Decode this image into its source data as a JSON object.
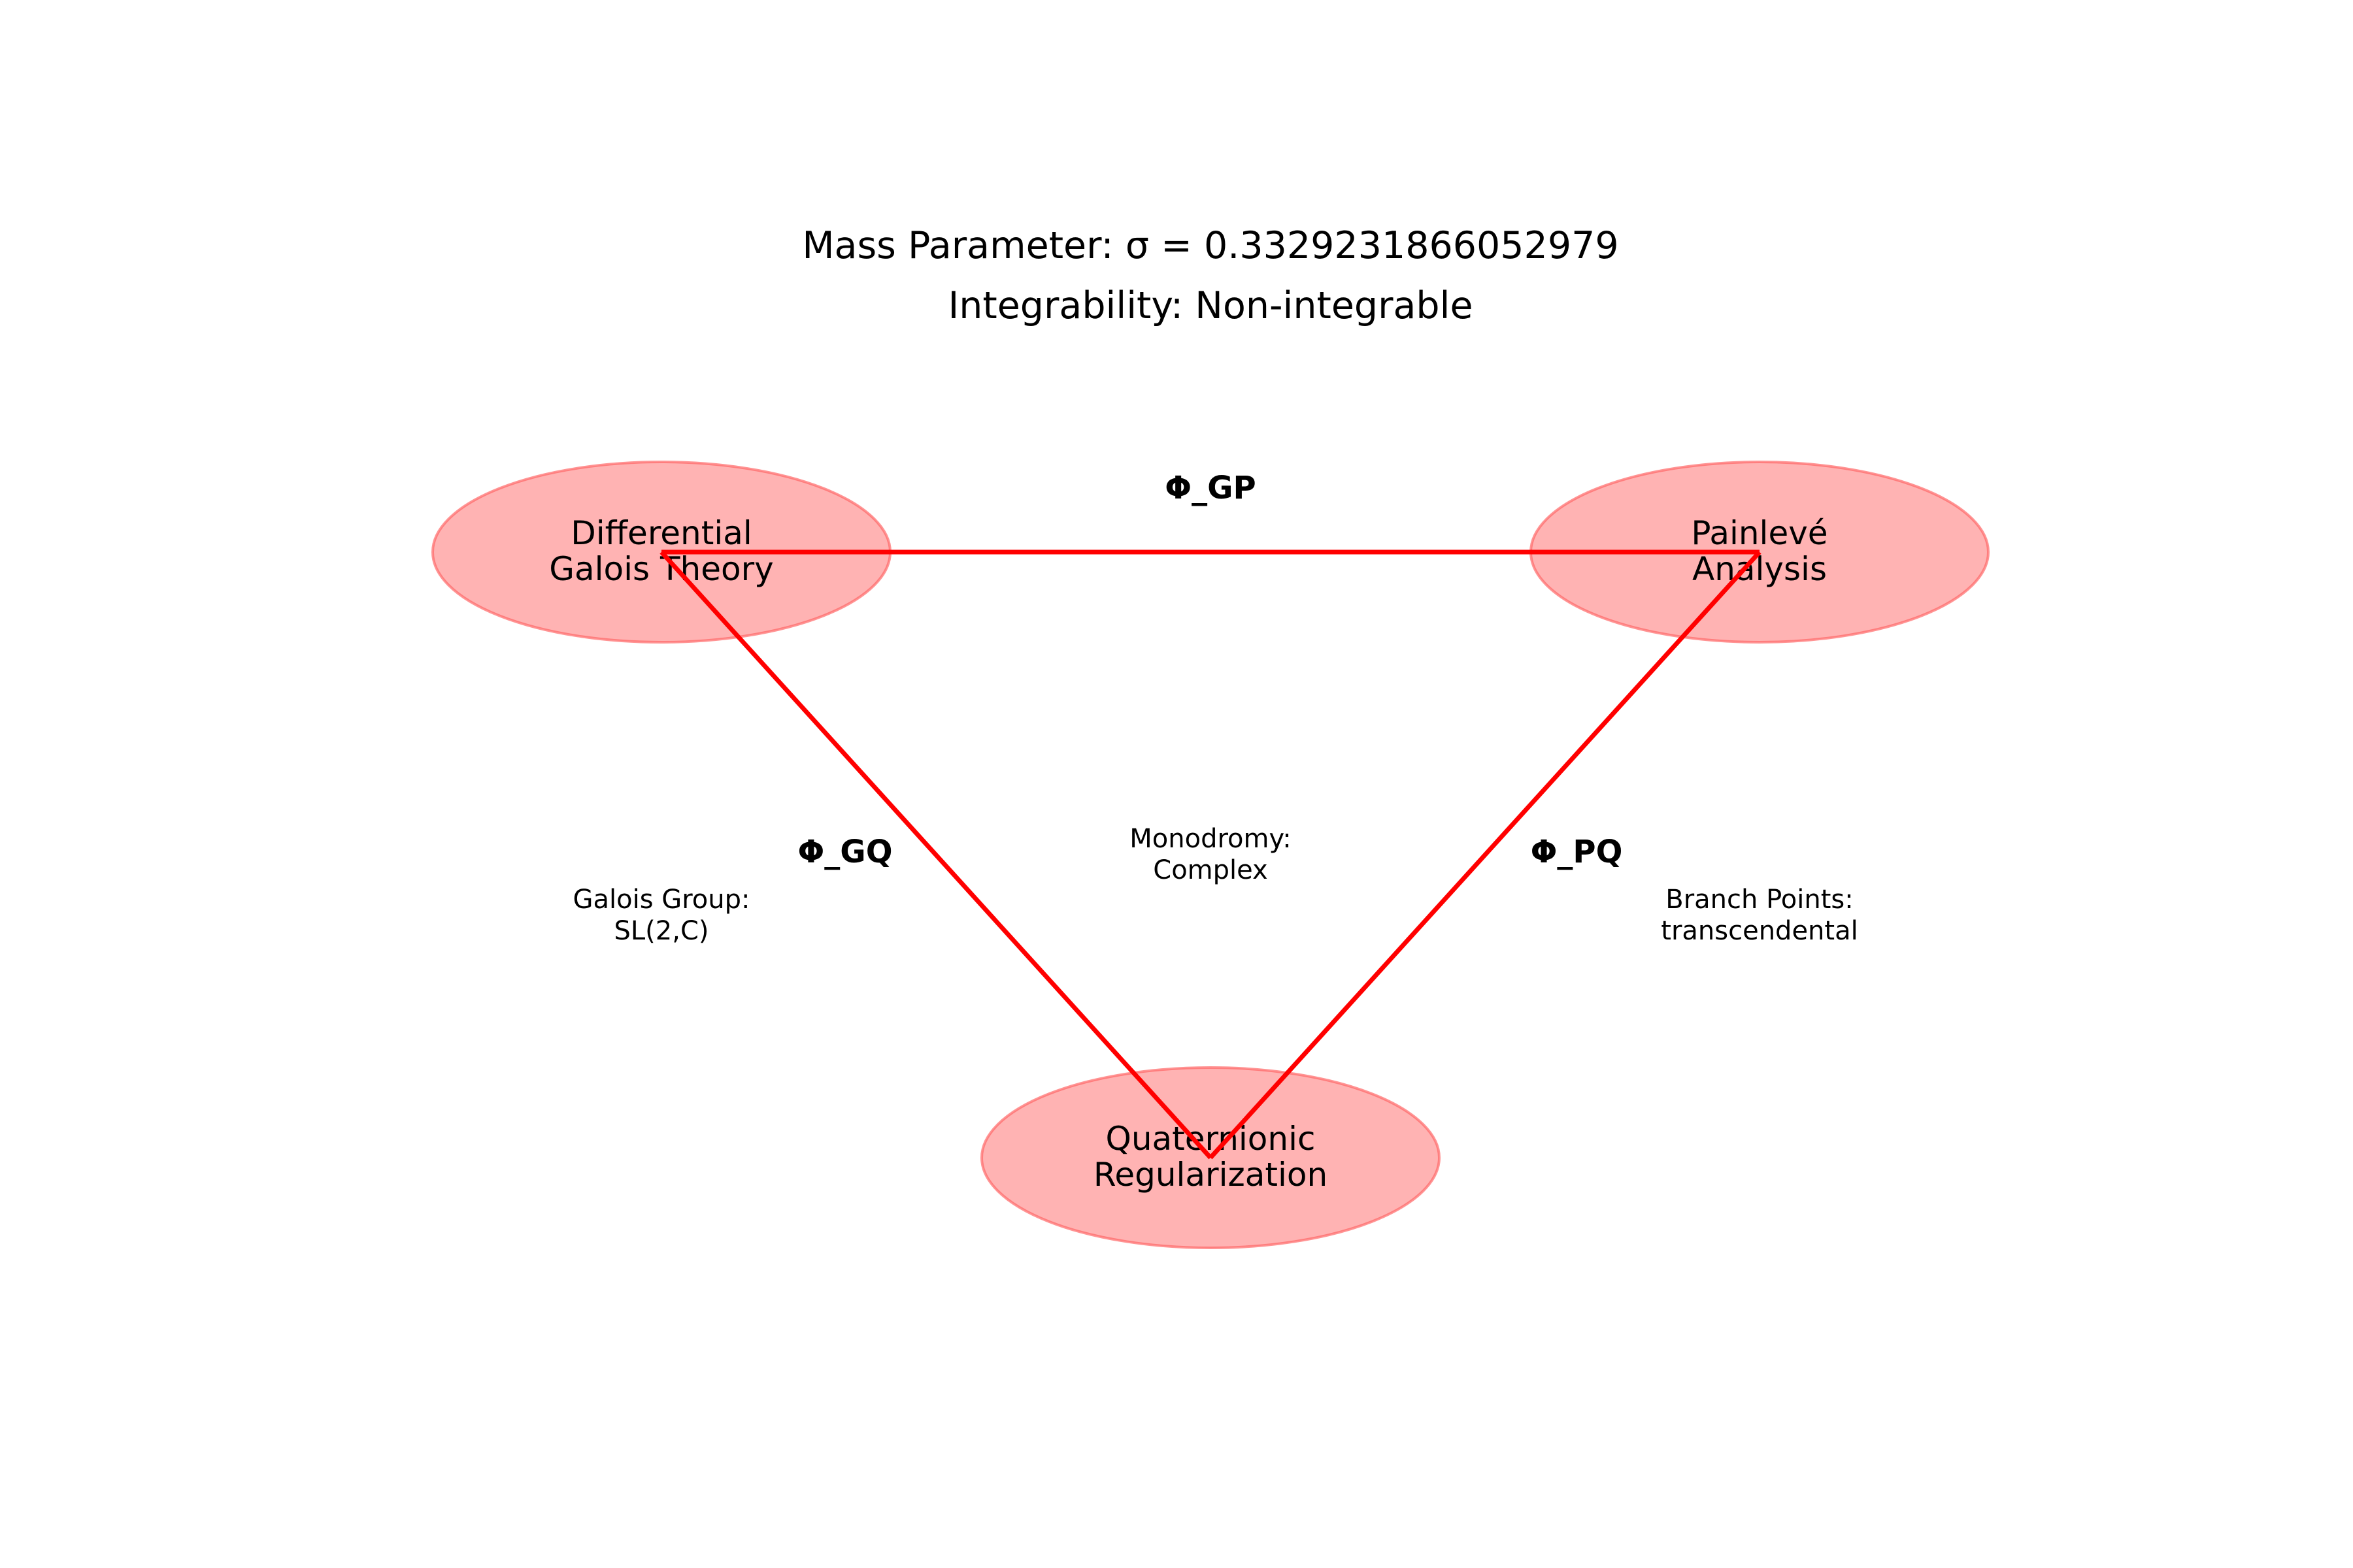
{
  "title": {
    "line1": "Mass Parameter: σ = 0.3329231866052979",
    "line2": "Integrability: Non-integrable"
  },
  "colors": {
    "node_fill": "#ff8080",
    "node_stroke": "#ff6666",
    "edge": "#ff0000",
    "text": "#000000"
  },
  "nodes": {
    "galois": {
      "line1": "Differential",
      "line2": "Galois Theory"
    },
    "painleve": {
      "line1": "Painlevé",
      "line2": "Analysis"
    },
    "quaternionic": {
      "line1": "Quaternionic",
      "line2": "Regularization"
    }
  },
  "edges": {
    "gp": "Φ_GP",
    "gq": "Φ_GQ",
    "pq": "Φ_PQ"
  },
  "annotations": {
    "galois_group": {
      "line1": "Galois Group:",
      "line2": "SL(2,C)"
    },
    "monodromy": {
      "line1": "Monodromy:",
      "line2": "Complex"
    },
    "branch_points": {
      "line1": "Branch Points:",
      "line2": "transcendental"
    }
  }
}
